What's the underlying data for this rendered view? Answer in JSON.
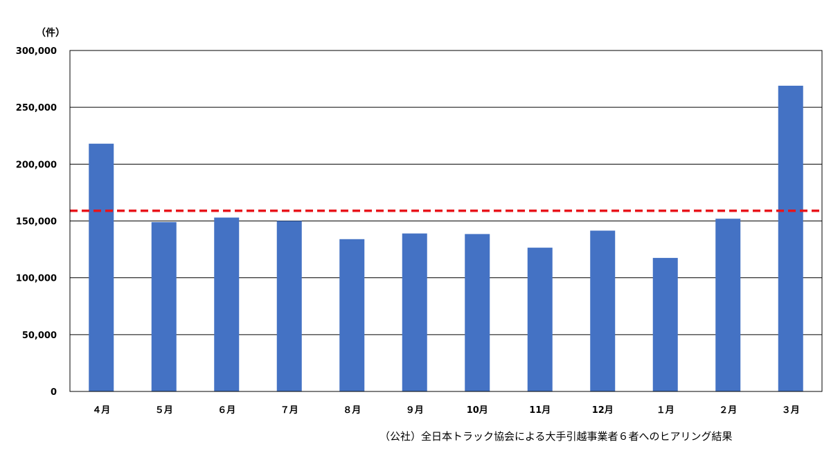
{
  "chart_data": {
    "type": "bar",
    "ylabel": "（件）",
    "categories": [
      "４月",
      "５月",
      "６月",
      "７月",
      "８月",
      "９月",
      "10月",
      "11月",
      "12月",
      "１月",
      "２月",
      "３月"
    ],
    "values": [
      218000,
      149000,
      153000,
      150000,
      134000,
      139000,
      138500,
      126500,
      141500,
      117500,
      152000,
      269000
    ],
    "ylim": [
      0,
      300000
    ],
    "yticks": [
      0,
      50000,
      100000,
      150000,
      200000,
      250000,
      300000
    ],
    "ytick_labels": [
      "0",
      "50,000",
      "100,000",
      "150,000",
      "200,000",
      "250,000",
      "300,000"
    ],
    "reference_line": {
      "value": 159000,
      "style": "dashed",
      "color": "#e8141b"
    },
    "bar_color": "#4472c4",
    "grid": true,
    "legend": "none"
  },
  "source": "（公社）全日本トラック協会による大手引越事業者６者へのヒアリング結果"
}
